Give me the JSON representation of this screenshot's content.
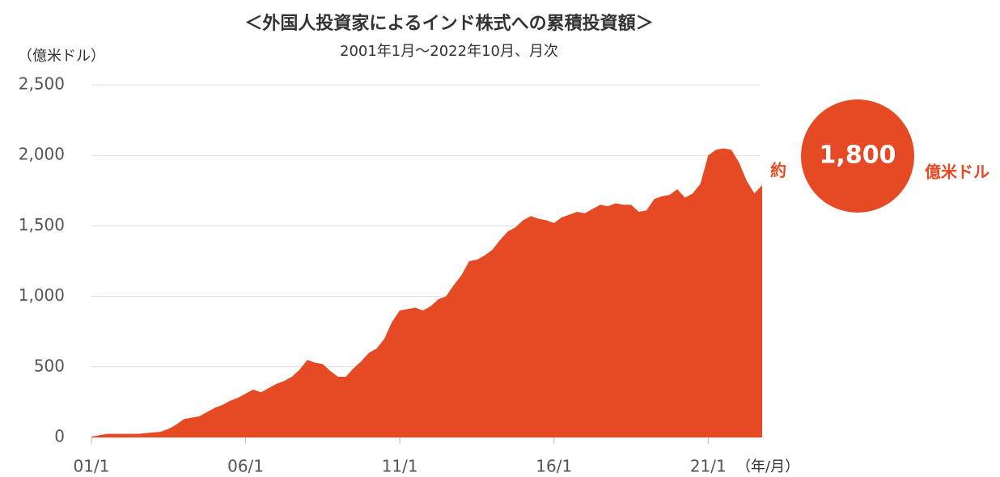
{
  "chart_data": {
    "type": "area",
    "title": "＜外国人投資家によるインド株式への累積投資額＞",
    "subtitle": "2001年1月～2022年10月、月次",
    "y_label": "（億米ドル）",
    "x_label": "（年/月）",
    "color": "#e64a25",
    "grid": true,
    "x": [
      "01/1",
      "01/4",
      "01/7",
      "01/10",
      "02/1",
      "02/4",
      "02/7",
      "02/10",
      "03/1",
      "03/4",
      "03/7",
      "03/10",
      "04/1",
      "04/4",
      "04/7",
      "04/10",
      "05/1",
      "05/4",
      "05/7",
      "05/10",
      "06/1",
      "06/4",
      "06/7",
      "06/10",
      "07/1",
      "07/4",
      "07/7",
      "07/10",
      "08/1",
      "08/4",
      "08/7",
      "08/10",
      "09/1",
      "09/4",
      "09/7",
      "09/10",
      "10/1",
      "10/4",
      "10/7",
      "10/10",
      "11/1",
      "11/4",
      "11/7",
      "11/10",
      "12/1",
      "12/4",
      "12/7",
      "12/10",
      "13/1",
      "13/4",
      "13/7",
      "13/10",
      "14/1",
      "14/4",
      "14/7",
      "14/10",
      "15/1",
      "15/4",
      "15/7",
      "15/10",
      "16/1",
      "16/4",
      "16/7",
      "16/10",
      "17/1",
      "17/4",
      "17/7",
      "17/10",
      "18/1",
      "18/4",
      "18/7",
      "18/10",
      "19/1",
      "19/4",
      "19/7",
      "19/10",
      "20/1",
      "20/4",
      "20/7",
      "20/10",
      "21/1",
      "21/4",
      "21/7",
      "21/10",
      "22/1",
      "22/4",
      "22/7",
      "22/10"
    ],
    "values": [
      5,
      15,
      25,
      25,
      25,
      25,
      25,
      30,
      35,
      40,
      60,
      90,
      130,
      140,
      150,
      180,
      210,
      230,
      260,
      280,
      310,
      340,
      320,
      350,
      380,
      400,
      430,
      480,
      550,
      530,
      520,
      470,
      430,
      430,
      490,
      540,
      600,
      630,
      700,
      820,
      900,
      910,
      920,
      900,
      930,
      980,
      1000,
      1080,
      1150,
      1250,
      1260,
      1290,
      1330,
      1400,
      1460,
      1490,
      1540,
      1570,
      1550,
      1540,
      1520,
      1560,
      1580,
      1600,
      1590,
      1620,
      1650,
      1640,
      1660,
      1650,
      1650,
      1600,
      1610,
      1690,
      1710,
      1720,
      1760,
      1700,
      1730,
      1800,
      2000,
      2040,
      2050,
      2040,
      1950,
      1820,
      1730,
      1790
    ],
    "xticks": [
      "01/1",
      "06/1",
      "11/1",
      "16/1",
      "21/1"
    ],
    "ylim": [
      0,
      2500
    ],
    "yticks": [
      0,
      500,
      {
        "value": 1000,
        "label": "1,000"
      },
      {
        "value": 1500,
        "label": "1,500"
      },
      {
        "value": 2000,
        "label": "2,000"
      },
      {
        "value": 2500,
        "label": "2,500"
      }
    ],
    "annotation": {
      "prefix": "約",
      "value_label": "1,800",
      "unit": "億米ドル"
    }
  }
}
